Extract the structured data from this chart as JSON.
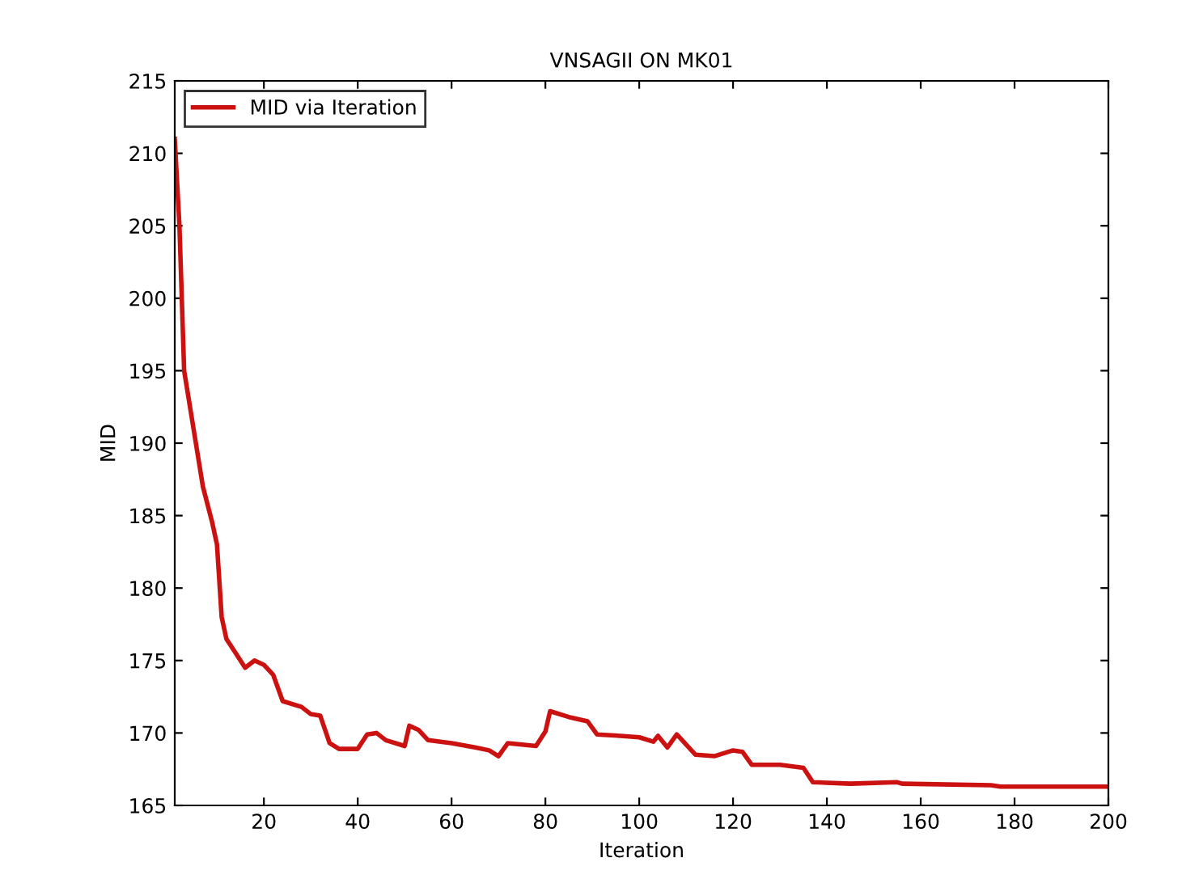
{
  "chart_data": {
    "type": "line",
    "title": "VNSAGII ON MK01",
    "xlabel": "Iteration",
    "ylabel": "MID",
    "x": [
      1,
      2,
      3,
      4,
      5,
      7,
      9,
      10,
      11,
      12,
      14,
      16,
      18,
      20,
      22,
      24,
      28,
      30,
      32,
      34,
      36,
      40,
      42,
      44,
      46,
      50,
      51,
      53,
      55,
      60,
      65,
      68,
      70,
      72,
      78,
      80,
      81,
      85,
      89,
      91,
      96,
      100,
      103,
      104,
      106,
      108,
      112,
      116,
      120,
      122,
      124,
      130,
      135,
      137,
      145,
      155,
      156,
      175,
      177,
      200
    ],
    "series": [
      {
        "name": "MID via Iteration",
        "color": "#cc1111",
        "values": [
          211,
          205,
          195,
          193,
          191,
          187,
          184.5,
          183,
          178,
          176.5,
          175.5,
          174.5,
          175,
          174.7,
          174,
          172.2,
          171.8,
          171.3,
          171.2,
          169.3,
          168.9,
          168.9,
          169.9,
          170,
          169.5,
          169.1,
          170.5,
          170.2,
          169.5,
          169.3,
          169,
          168.8,
          168.4,
          169.3,
          169.1,
          170.1,
          171.5,
          171.1,
          170.8,
          169.9,
          169.8,
          169.7,
          169.4,
          169.8,
          169,
          169.9,
          168.5,
          168.4,
          168.8,
          168.7,
          167.8,
          167.8,
          167.6,
          166.6,
          166.5,
          166.6,
          166.5,
          166.4,
          166.3,
          166.3
        ]
      }
    ],
    "xlim": [
      1,
      200
    ],
    "ylim": [
      165,
      215
    ],
    "xticks": [
      20,
      40,
      60,
      80,
      100,
      120,
      140,
      160,
      180,
      200
    ],
    "yticks": [
      165,
      170,
      175,
      180,
      185,
      190,
      195,
      200,
      205,
      210,
      215
    ],
    "grid": false,
    "legend": "top left",
    "line_style": "solid",
    "marker": "none"
  }
}
